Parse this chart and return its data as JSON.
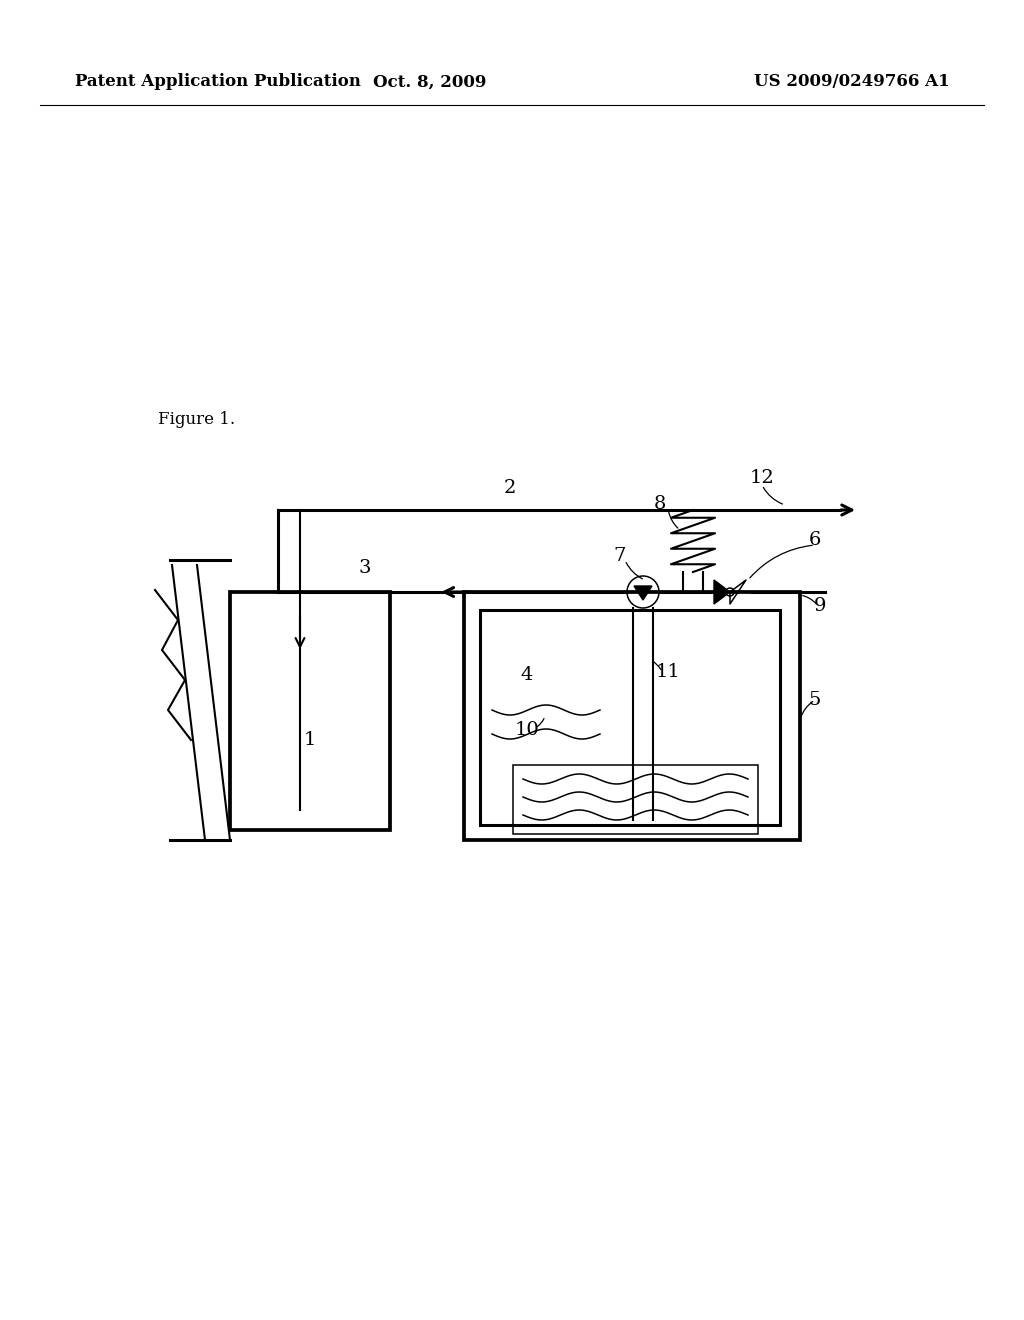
{
  "bg_color": "#ffffff",
  "header_left": "Patent Application Publication",
  "header_center": "Oct. 8, 2009",
  "header_right": "US 2009/0249766 A1",
  "figure_label": "Figure 1.",
  "lw_main": 2.2,
  "lw_med": 1.5,
  "lw_thin": 1.1,
  "label_fontsize": 14,
  "header_fontsize": 12
}
